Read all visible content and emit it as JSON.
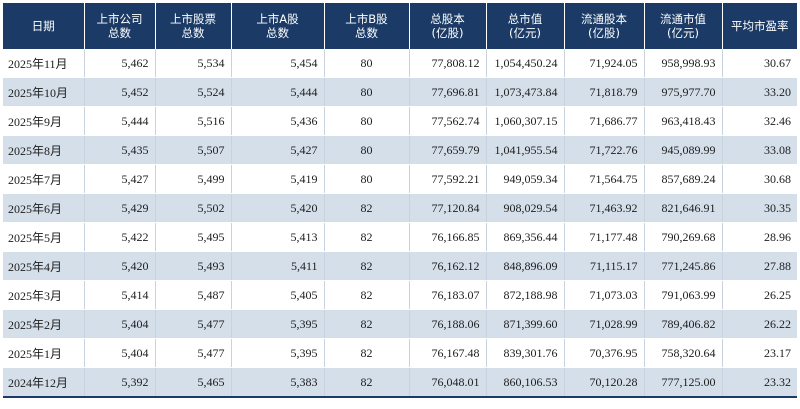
{
  "table": {
    "headers": [
      [
        "日期"
      ],
      [
        "上市公司",
        "总数"
      ],
      [
        "上市股票",
        "总数"
      ],
      [
        "上市A股",
        "总数"
      ],
      [
        "上市B股",
        "总数"
      ],
      [
        "总股本",
        "(亿股)"
      ],
      [
        "总市值",
        "(亿元)"
      ],
      [
        "流通股本",
        "(亿股)"
      ],
      [
        "流通市值",
        "(亿元)"
      ],
      [
        "平均市盈率"
      ]
    ],
    "rows": [
      [
        "2025年11月",
        "5,462",
        "5,534",
        "5,454",
        "80",
        "77,808.12",
        "1,054,450.24",
        "71,924.05",
        "958,998.93",
        "30.67"
      ],
      [
        "2025年10月",
        "5,452",
        "5,524",
        "5,444",
        "80",
        "77,696.81",
        "1,073,473.84",
        "71,818.79",
        "975,977.70",
        "33.20"
      ],
      [
        "2025年9月",
        "5,444",
        "5,516",
        "5,436",
        "80",
        "77,562.74",
        "1,060,307.15",
        "71,686.77",
        "963,418.43",
        "32.46"
      ],
      [
        "2025年8月",
        "5,435",
        "5,507",
        "5,427",
        "80",
        "77,659.79",
        "1,041,955.54",
        "71,722.76",
        "945,089.99",
        "33.08"
      ],
      [
        "2025年7月",
        "5,427",
        "5,499",
        "5,419",
        "80",
        "77,592.21",
        "949,059.34",
        "71,564.75",
        "857,689.24",
        "30.68"
      ],
      [
        "2025年6月",
        "5,429",
        "5,502",
        "5,420",
        "82",
        "77,120.84",
        "908,029.54",
        "71,463.92",
        "821,646.91",
        "30.35"
      ],
      [
        "2025年5月",
        "5,422",
        "5,495",
        "5,413",
        "82",
        "76,166.85",
        "869,356.44",
        "71,177.48",
        "790,269.68",
        "28.96"
      ],
      [
        "2025年4月",
        "5,420",
        "5,493",
        "5,411",
        "82",
        "76,162.12",
        "848,896.09",
        "71,115.17",
        "771,245.86",
        "27.88"
      ],
      [
        "2025年3月",
        "5,414",
        "5,487",
        "5,405",
        "82",
        "76,183.07",
        "872,188.98",
        "71,073.03",
        "791,063.99",
        "26.25"
      ],
      [
        "2025年2月",
        "5,404",
        "5,477",
        "5,395",
        "82",
        "76,188.06",
        "871,399.60",
        "71,028.99",
        "789,406.82",
        "26.22"
      ],
      [
        "2025年1月",
        "5,404",
        "5,477",
        "5,395",
        "82",
        "76,167.48",
        "839,301.76",
        "70,376.95",
        "758,320.64",
        "23.17"
      ],
      [
        "2024年12月",
        "5,392",
        "5,465",
        "5,383",
        "82",
        "76,048.01",
        "860,106.53",
        "70,120.28",
        "777,125.00",
        "23.32"
      ]
    ]
  }
}
